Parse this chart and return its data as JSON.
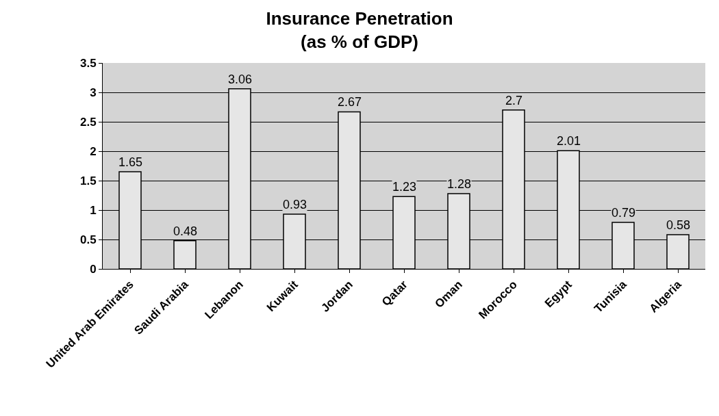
{
  "chart_data": {
    "type": "bar",
    "title": "Insurance Penetration",
    "subtitle": "(as % of GDP)",
    "categories": [
      "United Arab Emirates",
      "Saudi Arabia",
      "Lebanon",
      "Kuwait",
      "Jordan",
      "Qatar",
      "Oman",
      "Morocco",
      "Egypt",
      "Tunisia",
      "Algeria"
    ],
    "values": [
      1.65,
      0.48,
      3.06,
      0.93,
      2.67,
      1.23,
      1.28,
      2.7,
      2.01,
      0.79,
      0.58
    ],
    "color": "#e6e6e6",
    "ylim": [
      0,
      3.5
    ],
    "yticks": [
      0,
      0.5,
      1,
      1.5,
      2,
      2.5,
      3,
      3.5
    ],
    "grid": "y",
    "data_labels": true
  }
}
